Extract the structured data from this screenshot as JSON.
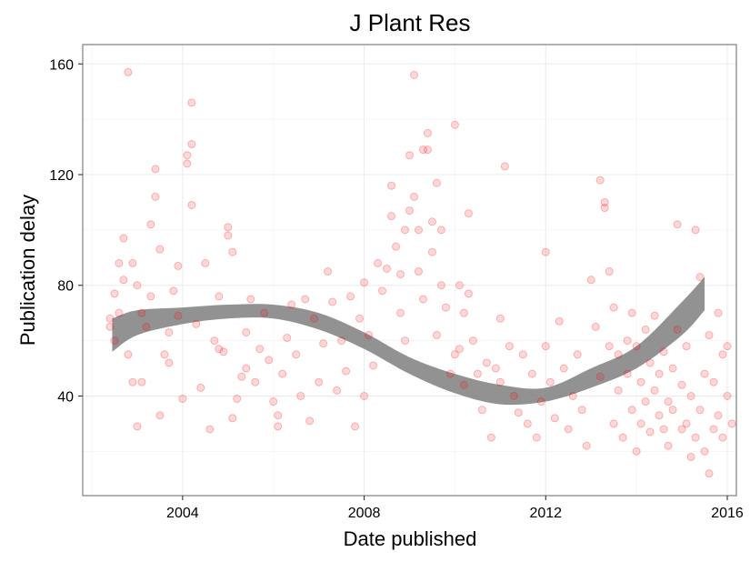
{
  "chart_data": {
    "type": "scatter",
    "title": "J Plant Res",
    "xlabel": "Date published",
    "ylabel": "Publication delay",
    "x_ticks": [
      "2004",
      "2008",
      "2012",
      "2016"
    ],
    "y_ticks": [
      "40",
      "80",
      "120",
      "160"
    ],
    "xlim": [
      2001.8,
      2016.2
    ],
    "ylim": [
      4,
      167
    ],
    "grid": true,
    "legend": "none",
    "colors": {
      "points": "#ff0000",
      "smooth_band": "#7a7a7a"
    },
    "smooth_band": [
      {
        "x": 2002.45,
        "lo": 56,
        "hi": 68
      },
      {
        "x": 2003.0,
        "lo": 62,
        "hi": 71
      },
      {
        "x": 2004.0,
        "lo": 66,
        "hi": 72
      },
      {
        "x": 2005.0,
        "lo": 68,
        "hi": 73
      },
      {
        "x": 2006.0,
        "lo": 68,
        "hi": 73
      },
      {
        "x": 2007.0,
        "lo": 64,
        "hi": 70
      },
      {
        "x": 2008.0,
        "lo": 57,
        "hi": 63
      },
      {
        "x": 2009.0,
        "lo": 48,
        "hi": 54
      },
      {
        "x": 2010.0,
        "lo": 41,
        "hi": 48
      },
      {
        "x": 2011.0,
        "lo": 37,
        "hi": 44
      },
      {
        "x": 2012.0,
        "lo": 38,
        "hi": 43
      },
      {
        "x": 2013.0,
        "lo": 43,
        "hi": 50
      },
      {
        "x": 2014.0,
        "lo": 50,
        "hi": 58
      },
      {
        "x": 2015.0,
        "lo": 62,
        "hi": 74
      },
      {
        "x": 2015.5,
        "lo": 71,
        "hi": 83
      }
    ],
    "points": [
      [
        2002.4,
        65
      ],
      [
        2002.4,
        68
      ],
      [
        2002.5,
        77
      ],
      [
        2002.5,
        60
      ],
      [
        2002.6,
        70
      ],
      [
        2002.6,
        88
      ],
      [
        2002.7,
        82
      ],
      [
        2002.7,
        97
      ],
      [
        2002.8,
        157
      ],
      [
        2002.8,
        55
      ],
      [
        2002.9,
        88
      ],
      [
        2002.9,
        45
      ],
      [
        2003.0,
        80
      ],
      [
        2003.0,
        29
      ],
      [
        2003.1,
        70
      ],
      [
        2003.1,
        45
      ],
      [
        2003.2,
        65
      ],
      [
        2003.3,
        102
      ],
      [
        2003.3,
        76
      ],
      [
        2003.4,
        112
      ],
      [
        2003.4,
        122
      ],
      [
        2003.5,
        93
      ],
      [
        2003.5,
        33
      ],
      [
        2003.6,
        55
      ],
      [
        2003.7,
        52
      ],
      [
        2003.7,
        63
      ],
      [
        2003.8,
        78
      ],
      [
        2003.9,
        87
      ],
      [
        2003.9,
        69
      ],
      [
        2004.0,
        39
      ],
      [
        2004.1,
        124
      ],
      [
        2004.1,
        127
      ],
      [
        2004.2,
        131
      ],
      [
        2004.2,
        146
      ],
      [
        2004.2,
        109
      ],
      [
        2004.3,
        66
      ],
      [
        2004.4,
        43
      ],
      [
        2004.5,
        88
      ],
      [
        2004.6,
        28
      ],
      [
        2004.7,
        60
      ],
      [
        2004.8,
        76
      ],
      [
        2004.8,
        57
      ],
      [
        2004.9,
        56
      ],
      [
        2005.0,
        101
      ],
      [
        2005.0,
        98
      ],
      [
        2005.1,
        92
      ],
      [
        2005.1,
        32
      ],
      [
        2005.2,
        39
      ],
      [
        2005.3,
        47
      ],
      [
        2005.4,
        63
      ],
      [
        2005.4,
        50
      ],
      [
        2005.5,
        75
      ],
      [
        2005.6,
        45
      ],
      [
        2005.7,
        57
      ],
      [
        2005.8,
        70
      ],
      [
        2005.9,
        53
      ],
      [
        2006.0,
        38
      ],
      [
        2006.1,
        29
      ],
      [
        2006.1,
        33
      ],
      [
        2006.2,
        48
      ],
      [
        2006.3,
        61
      ],
      [
        2006.4,
        73
      ],
      [
        2006.5,
        55
      ],
      [
        2006.6,
        40
      ],
      [
        2006.7,
        75
      ],
      [
        2006.8,
        31
      ],
      [
        2006.9,
        68
      ],
      [
        2007.0,
        45
      ],
      [
        2007.1,
        59
      ],
      [
        2007.2,
        85
      ],
      [
        2007.3,
        74
      ],
      [
        2007.4,
        42
      ],
      [
        2007.5,
        60
      ],
      [
        2007.6,
        49
      ],
      [
        2007.7,
        76
      ],
      [
        2007.8,
        29
      ],
      [
        2007.9,
        68
      ],
      [
        2008.0,
        40
      ],
      [
        2008.0,
        81
      ],
      [
        2008.1,
        62
      ],
      [
        2008.2,
        51
      ],
      [
        2008.3,
        88
      ],
      [
        2008.4,
        78
      ],
      [
        2008.5,
        86
      ],
      [
        2008.6,
        105
      ],
      [
        2008.6,
        116
      ],
      [
        2008.7,
        94
      ],
      [
        2008.8,
        70
      ],
      [
        2008.8,
        84
      ],
      [
        2008.9,
        60
      ],
      [
        2008.9,
        100
      ],
      [
        2009.0,
        107
      ],
      [
        2009.0,
        127
      ],
      [
        2009.1,
        156
      ],
      [
        2009.1,
        112
      ],
      [
        2009.2,
        100
      ],
      [
        2009.2,
        85
      ],
      [
        2009.3,
        129
      ],
      [
        2009.3,
        75
      ],
      [
        2009.4,
        129
      ],
      [
        2009.4,
        135
      ],
      [
        2009.5,
        103
      ],
      [
        2009.5,
        92
      ],
      [
        2009.6,
        117
      ],
      [
        2009.6,
        62
      ],
      [
        2009.7,
        80
      ],
      [
        2009.7,
        100
      ],
      [
        2009.8,
        72
      ],
      [
        2009.9,
        48
      ],
      [
        2010.0,
        138
      ],
      [
        2010.0,
        55
      ],
      [
        2010.1,
        80
      ],
      [
        2010.1,
        57
      ],
      [
        2010.2,
        70
      ],
      [
        2010.2,
        44
      ],
      [
        2010.3,
        77
      ],
      [
        2010.3,
        106
      ],
      [
        2010.4,
        60
      ],
      [
        2010.5,
        48
      ],
      [
        2010.6,
        35
      ],
      [
        2010.7,
        52
      ],
      [
        2010.8,
        25
      ],
      [
        2010.9,
        50
      ],
      [
        2011.0,
        45
      ],
      [
        2011.0,
        68
      ],
      [
        2011.1,
        123
      ],
      [
        2011.2,
        58
      ],
      [
        2011.3,
        40
      ],
      [
        2011.4,
        34
      ],
      [
        2011.5,
        55
      ],
      [
        2011.6,
        30
      ],
      [
        2011.7,
        48
      ],
      [
        2011.8,
        25
      ],
      [
        2011.9,
        38
      ],
      [
        2012.0,
        92
      ],
      [
        2012.0,
        58
      ],
      [
        2012.1,
        45
      ],
      [
        2012.2,
        32
      ],
      [
        2012.3,
        67
      ],
      [
        2012.4,
        50
      ],
      [
        2012.5,
        28
      ],
      [
        2012.6,
        40
      ],
      [
        2012.7,
        55
      ],
      [
        2012.8,
        35
      ],
      [
        2012.9,
        22
      ],
      [
        2013.0,
        82
      ],
      [
        2013.1,
        65
      ],
      [
        2013.2,
        47
      ],
      [
        2013.2,
        118
      ],
      [
        2013.3,
        110
      ],
      [
        2013.3,
        108
      ],
      [
        2013.4,
        58
      ],
      [
        2013.4,
        85
      ],
      [
        2013.5,
        30
      ],
      [
        2013.5,
        72
      ],
      [
        2013.6,
        55
      ],
      [
        2013.6,
        42
      ],
      [
        2013.7,
        25
      ],
      [
        2013.8,
        60
      ],
      [
        2013.8,
        48
      ],
      [
        2013.9,
        35
      ],
      [
        2013.9,
        70
      ],
      [
        2014.0,
        20
      ],
      [
        2014.0,
        58
      ],
      [
        2014.1,
        45
      ],
      [
        2014.1,
        30
      ],
      [
        2014.2,
        38
      ],
      [
        2014.2,
        64
      ],
      [
        2014.3,
        52
      ],
      [
        2014.3,
        27
      ],
      [
        2014.4,
        42
      ],
      [
        2014.4,
        69
      ],
      [
        2014.5,
        33
      ],
      [
        2014.5,
        48
      ],
      [
        2014.6,
        28
      ],
      [
        2014.6,
        56
      ],
      [
        2014.7,
        38
      ],
      [
        2014.7,
        22
      ],
      [
        2014.8,
        50
      ],
      [
        2014.8,
        35
      ],
      [
        2014.9,
        102
      ],
      [
        2014.9,
        64
      ],
      [
        2015.0,
        44
      ],
      [
        2015.0,
        28
      ],
      [
        2015.1,
        30
      ],
      [
        2015.1,
        58
      ],
      [
        2015.2,
        18
      ],
      [
        2015.2,
        40
      ],
      [
        2015.3,
        25
      ],
      [
        2015.3,
        100
      ],
      [
        2015.4,
        35
      ],
      [
        2015.4,
        83
      ],
      [
        2015.5,
        48
      ],
      [
        2015.5,
        20
      ],
      [
        2015.6,
        62
      ],
      [
        2015.6,
        12
      ],
      [
        2015.7,
        28
      ],
      [
        2015.7,
        45
      ],
      [
        2015.8,
        33
      ],
      [
        2015.8,
        70
      ],
      [
        2015.9,
        55
      ],
      [
        2015.9,
        25
      ],
      [
        2016.0,
        40
      ],
      [
        2016.0,
        58
      ],
      [
        2016.1,
        30
      ]
    ]
  }
}
